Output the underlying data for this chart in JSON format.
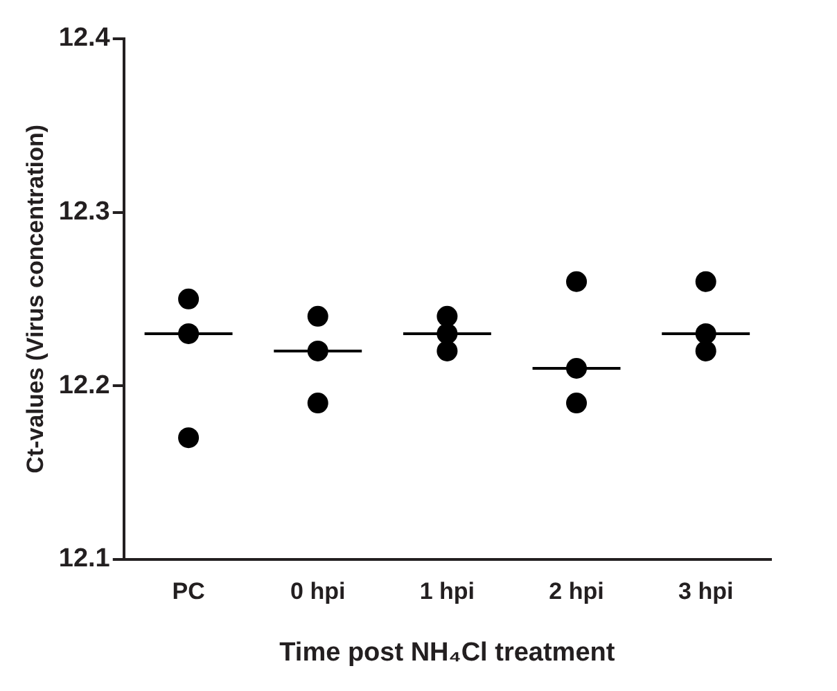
{
  "chart_data": {
    "type": "scatter",
    "categories": [
      "PC",
      "0 hpi",
      "1 hpi",
      "2 hpi",
      "3 hpi"
    ],
    "xlabel": "Time post NH₄Cl treatment",
    "ylabel": "Ct-values (Virus concentration)",
    "ylim": [
      12.1,
      12.4
    ],
    "yticks": [
      12.1,
      12.2,
      12.3,
      12.4
    ],
    "grid": false,
    "legend": false,
    "series": [
      {
        "type": "scatter",
        "marker": "circle",
        "color": "#000000",
        "x": [
          "PC",
          "PC",
          "PC",
          "0 hpi",
          "0 hpi",
          "0 hpi",
          "1 hpi",
          "1 hpi",
          "1 hpi",
          "2 hpi",
          "2 hpi",
          "2 hpi",
          "3 hpi",
          "3 hpi",
          "3 hpi"
        ],
        "values": [
          12.25,
          12.23,
          12.17,
          12.24,
          12.22,
          12.19,
          12.24,
          12.22,
          12.23,
          12.26,
          12.21,
          12.19,
          12.26,
          12.22,
          12.23
        ]
      },
      {
        "type": "box",
        "color": "#000000",
        "boxes": [
          {
            "low": 12.23,
            "q1": 12.23,
            "median": 12.23,
            "q3": 12.23,
            "high": 12.23
          },
          {
            "low": 12.22,
            "q1": 12.22,
            "median": 12.22,
            "q3": 12.22,
            "high": 12.22
          },
          {
            "low": 12.23,
            "q1": 12.23,
            "median": 12.23,
            "q3": 12.23,
            "high": 12.23
          },
          {
            "low": 12.21,
            "q1": 12.21,
            "median": 12.21,
            "q3": 12.21,
            "high": 12.21
          },
          {
            "low": 12.23,
            "q1": 12.23,
            "median": 12.23,
            "q3": 12.23,
            "high": 12.23
          }
        ]
      }
    ]
  }
}
